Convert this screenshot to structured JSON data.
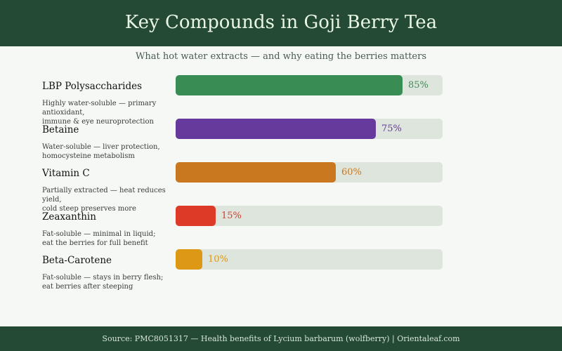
{
  "chart_data": {
    "type": "bar",
    "orientation": "horizontal",
    "title": "Key Compounds in Goji Berry Tea",
    "subtitle": "What hot water extracts — and why eating the berries matters",
    "source": "Source: PMC8051317 — Health benefits of Lycium barbarum (wolfberry) | Orientaleaf.com",
    "xlim": [
      0,
      100
    ],
    "unit": "%",
    "grid": false,
    "categories": [
      "LBP Polysaccharides",
      "Betaine",
      "Vitamin C",
      "Zeaxanthin",
      "Beta-Carotene"
    ],
    "values": [
      85,
      75,
      60,
      15,
      10
    ],
    "value_labels": [
      "85%",
      "75%",
      "60%",
      "15%",
      "10%"
    ],
    "descriptions": [
      [
        "Highly water-soluble — primary antioxidant,",
        "immune & eye neuroprotection"
      ],
      [
        "Water-soluble — liver protection,",
        "homocysteine metabolism"
      ],
      [
        "Partially extracted — heat reduces yield,",
        "cold steep preserves more"
      ],
      [
        "Fat-soluble — minimal in liquid;",
        "eat the berries for full benefit"
      ],
      [
        "Fat-soluble — stays in berry flesh;",
        "eat berries after steeping"
      ]
    ],
    "colors": [
      "#3a8c55",
      "#653a9c",
      "#c97820",
      "#dd3a28",
      "#dd9815"
    ]
  }
}
